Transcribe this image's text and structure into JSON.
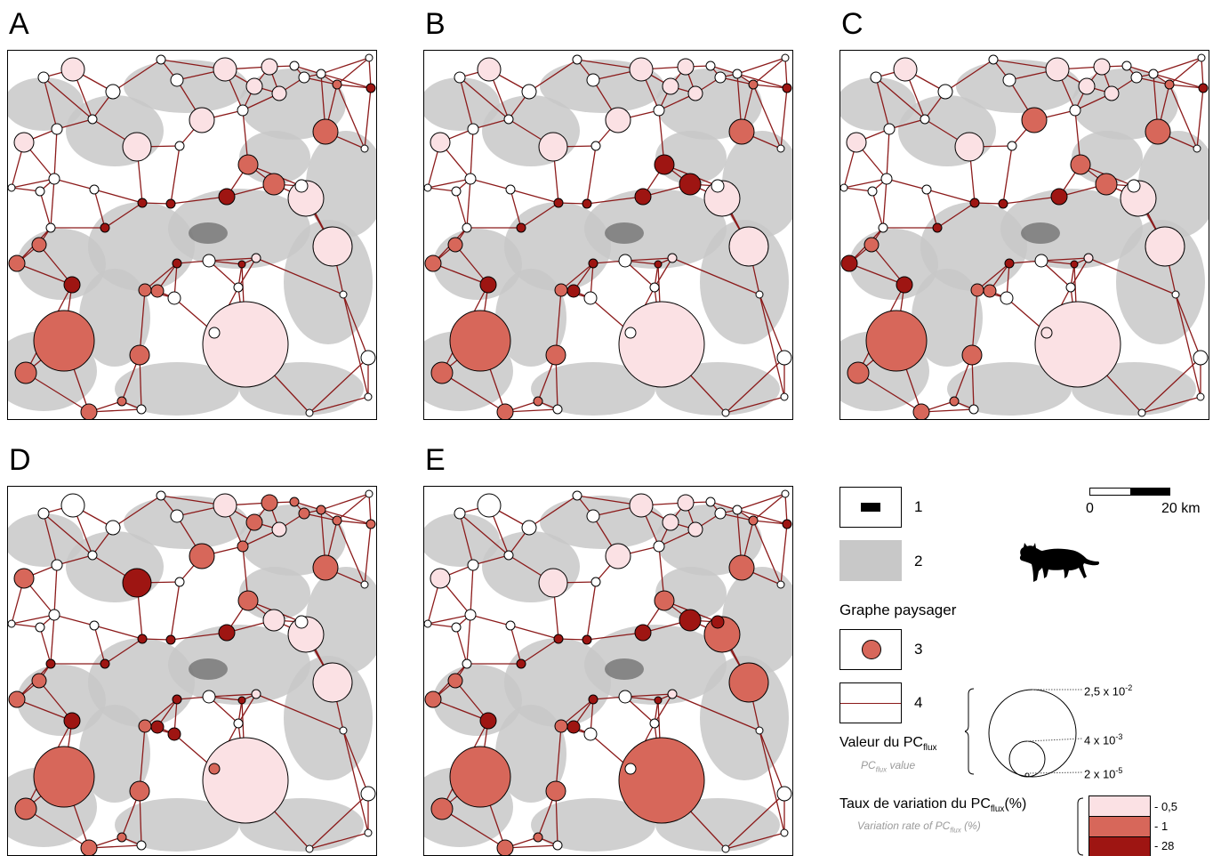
{
  "panels": [
    {
      "label": "A",
      "variant": 0
    },
    {
      "label": "B",
      "variant": 1
    },
    {
      "label": "C",
      "variant": 2
    },
    {
      "label": "D",
      "variant": 3
    },
    {
      "label": "E",
      "variant": 4
    }
  ],
  "colors": {
    "class_low": "#fbe1e4",
    "class_mid": "#d7675a",
    "class_high": "#9e1512",
    "edge": "#8b1a1a",
    "habitat": "#c8c8c8",
    "urban": "#000000"
  },
  "legend": {
    "item1_num": "1",
    "item2_num": "2",
    "graph_title": "Graphe paysager",
    "item3_num": "3",
    "item4_num": "4",
    "scale_start": "0",
    "scale_end": "20 km",
    "size_title_main": "Valeur du PC",
    "size_title_sub": "flux",
    "size_subtitle_main": "PC",
    "size_subtitle_sub": "flux",
    "size_subtitle_end": " value",
    "size_values": [
      {
        "base": "2,5 x 10",
        "exp": "-2"
      },
      {
        "base": "4 x 10",
        "exp": "-3"
      },
      {
        "base": "2 x 10",
        "exp": "-5"
      }
    ],
    "variation_title_main": "Taux de variation du PC",
    "variation_title_sub": "flux",
    "variation_title_end": "(%)",
    "variation_subtitle_main": "Variation rate of PC",
    "variation_subtitle_sub": "flux",
    "variation_subtitle_end": " (%)",
    "variation_classes": [
      {
        "label": "- 0,5",
        "color": "#fbe1e4"
      },
      {
        "label": "- 1",
        "color": "#d7675a"
      },
      {
        "label": "- 28",
        "color": "#9e1512"
      }
    ],
    "animal_icon": "wildcat-silhouette-icon"
  }
}
